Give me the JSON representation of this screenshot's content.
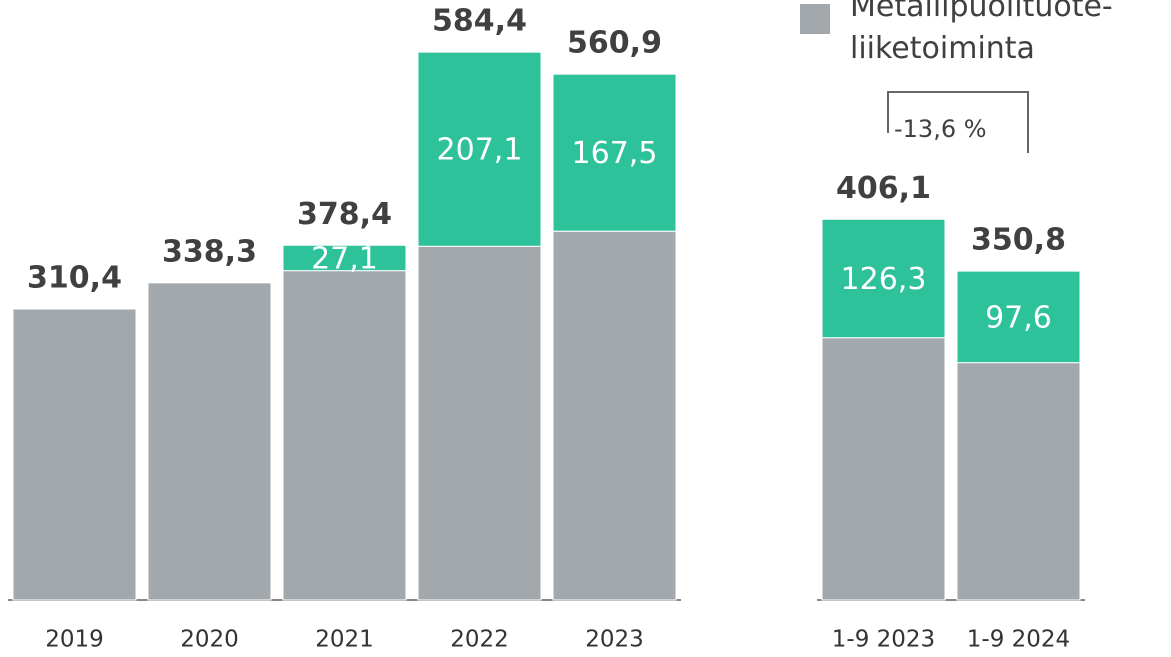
{
  "chart_data": [
    {
      "type": "bar",
      "stacked": true,
      "categories": [
        "2019",
        "2020",
        "2021",
        "2022",
        "2023"
      ],
      "series": [
        {
          "color": "#a3a8ad",
          "values": [
            310.4,
            338.3,
            351.3,
            377.3,
            393.4
          ]
        },
        {
          "color": "#2ec29b",
          "values": [
            null,
            null,
            27.1,
            207.1,
            167.5
          ],
          "value_labels": [
            null,
            null,
            "27,1",
            "207,1",
            "167,5"
          ]
        }
      ],
      "totals": [
        310.4,
        338.3,
        378.4,
        584.4,
        560.9
      ],
      "total_labels": [
        "310,4",
        "338,3",
        "378,4",
        "584,4",
        "560,9"
      ],
      "ylim": [
        0,
        640
      ]
    },
    {
      "type": "bar",
      "stacked": true,
      "categories": [
        "1-9 2023",
        "1-9 2024"
      ],
      "series": [
        {
          "name": "Metallipuolituote-liiketoiminta",
          "color": "#a3a8ad",
          "values": [
            279.8,
            253.2
          ]
        },
        {
          "color": "#2ec29b",
          "values": [
            126.3,
            97.6
          ],
          "value_labels": [
            "126,3",
            "97,6"
          ]
        }
      ],
      "totals": [
        406.1,
        350.8
      ],
      "total_labels": [
        "406,1",
        "350,8"
      ],
      "annotation": "-13,6 %",
      "ylim": [
        0,
        640
      ]
    }
  ]
}
